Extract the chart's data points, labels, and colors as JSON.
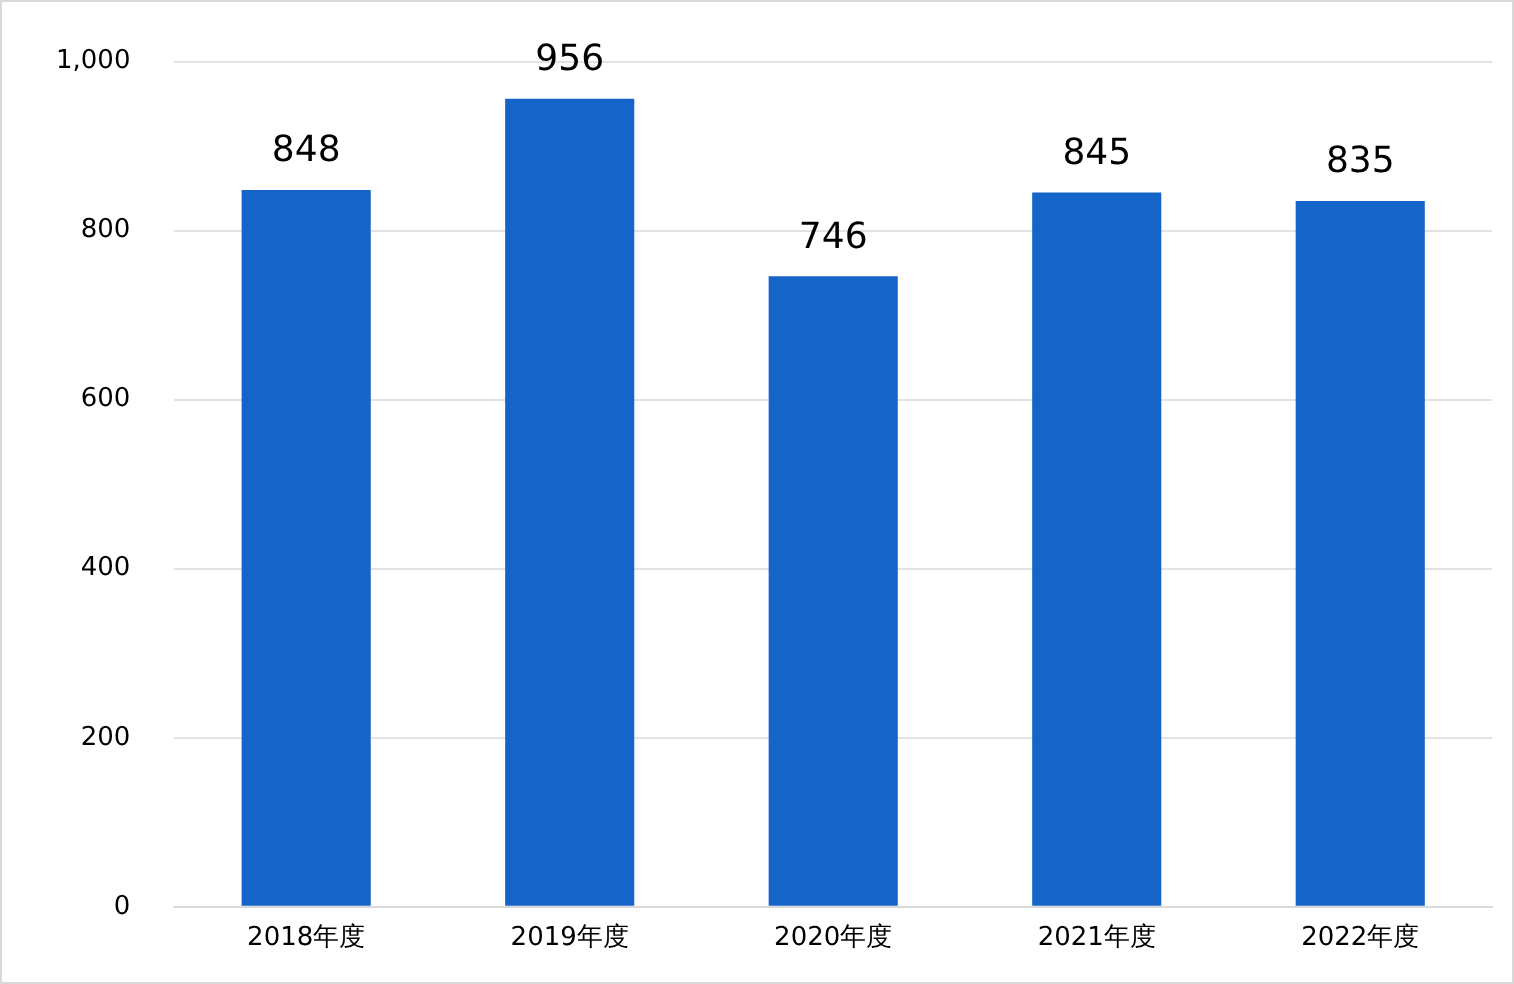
{
  "chart_data": {
    "type": "bar",
    "categories": [
      "2018年度",
      "2019年度",
      "2020年度",
      "2021年度",
      "2022年度"
    ],
    "values": [
      848,
      956,
      746,
      845,
      835
    ],
    "color": "#1565c8",
    "ylim": [
      0,
      1000
    ],
    "yticks": [
      0,
      200,
      400,
      600,
      800,
      {
        "value": 1000,
        "label": "1,000"
      }
    ],
    "grid": "y",
    "data_labels": true
  }
}
